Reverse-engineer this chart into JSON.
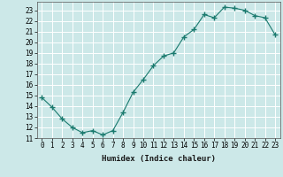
{
  "x": [
    0,
    1,
    2,
    3,
    4,
    5,
    6,
    7,
    8,
    9,
    10,
    11,
    12,
    13,
    14,
    15,
    16,
    17,
    18,
    19,
    20,
    21,
    22,
    23
  ],
  "y": [
    14.8,
    13.9,
    12.8,
    12.0,
    11.5,
    11.7,
    11.3,
    11.7,
    13.4,
    15.3,
    16.5,
    17.8,
    18.7,
    19.0,
    20.5,
    21.2,
    22.6,
    22.3,
    23.3,
    23.2,
    23.0,
    22.5,
    22.3,
    20.7
  ],
  "line_color": "#1a7a6e",
  "marker": "+",
  "marker_size": 4,
  "bg_color": "#cce8e8",
  "grid_color": "#ffffff",
  "xlabel": "Humidex (Indice chaleur)",
  "xlim": [
    -0.5,
    23.5
  ],
  "ylim": [
    11,
    23.8
  ],
  "yticks": [
    11,
    12,
    13,
    14,
    15,
    16,
    17,
    18,
    19,
    20,
    21,
    22,
    23
  ],
  "xtick_labels": [
    "0",
    "1",
    "2",
    "3",
    "4",
    "5",
    "6",
    "7",
    "8",
    "9",
    "10",
    "11",
    "12",
    "13",
    "14",
    "15",
    "16",
    "17",
    "18",
    "19",
    "20",
    "21",
    "22",
    "23"
  ],
  "title_fontsize": 7,
  "label_fontsize": 6.5,
  "tick_fontsize": 5.5
}
